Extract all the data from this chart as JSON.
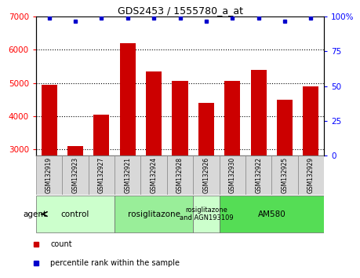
{
  "title": "GDS2453 / 1555780_a_at",
  "samples": [
    "GSM132919",
    "GSM132923",
    "GSM132927",
    "GSM132921",
    "GSM132924",
    "GSM132928",
    "GSM132926",
    "GSM132930",
    "GSM132922",
    "GSM132925",
    "GSM132929"
  ],
  "bar_values": [
    4950,
    3100,
    4050,
    6200,
    5350,
    5050,
    4400,
    5050,
    5400,
    4500,
    4900
  ],
  "dot_values": [
    99,
    97,
    99,
    99,
    99,
    99,
    97,
    99,
    99,
    97,
    99
  ],
  "bar_color": "#cc0000",
  "dot_color": "#0000cc",
  "ylim_left": [
    2800,
    7000
  ],
  "ylim_right": [
    0,
    100
  ],
  "yticks_left": [
    3000,
    4000,
    5000,
    6000,
    7000
  ],
  "yticks_left_labels": [
    "3000",
    "4000",
    "5000",
    "6000",
    "7000"
  ],
  "yticks_right": [
    0,
    25,
    50,
    75,
    100
  ],
  "yticks_right_labels": [
    "0",
    "25",
    "50",
    "75",
    "100%"
  ],
  "groups": [
    {
      "label": "control",
      "start": 0,
      "end": 3,
      "color": "#ccffcc"
    },
    {
      "label": "rosiglitazone",
      "start": 3,
      "end": 6,
      "color": "#99ee99"
    },
    {
      "label": "rosiglitazone\nand AGN193109",
      "start": 6,
      "end": 7,
      "color": "#ccffcc"
    },
    {
      "label": "AM580",
      "start": 7,
      "end": 11,
      "color": "#55dd55"
    }
  ],
  "legend_items": [
    {
      "label": "count",
      "color": "#cc0000"
    },
    {
      "label": "percentile rank within the sample",
      "color": "#0000cc"
    }
  ],
  "agent_label": "agent",
  "cell_bg": "#d8d8d8",
  "cell_border": "#888888"
}
